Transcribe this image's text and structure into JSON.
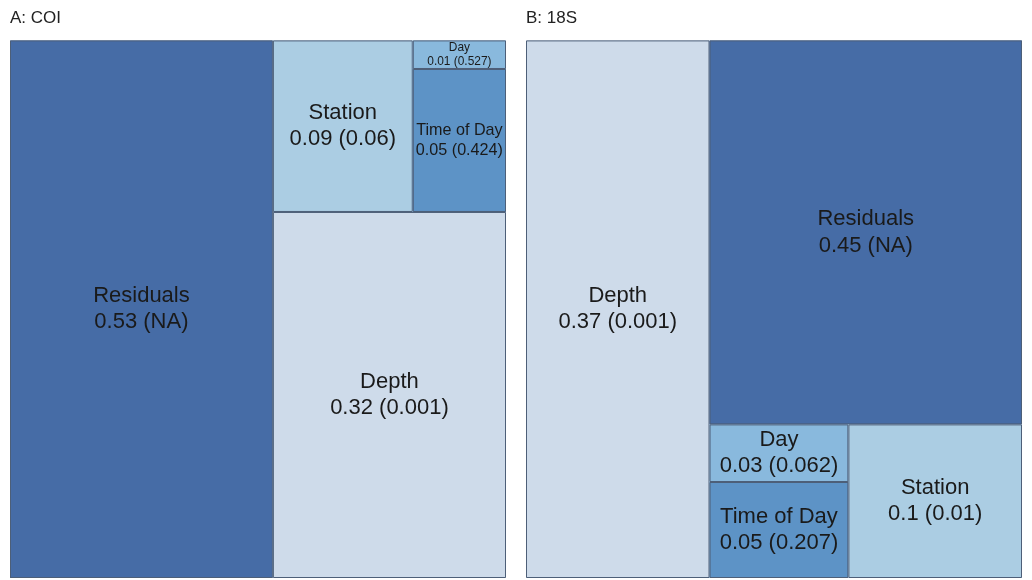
{
  "chart_data": [
    {
      "type": "other",
      "title": "A: COI",
      "categories": [
        "Residuals",
        "Station",
        "Day",
        "Time of Day",
        "Depth"
      ],
      "values": [
        0.53,
        0.09,
        0.01,
        0.05,
        0.32
      ],
      "value_labels": [
        "0.53 (NA)",
        "0.09 (0.06)",
        "0.01 (0.527)",
        "0.05 (0.424)",
        "0.32 (0.001)"
      ],
      "colors": [
        "#466ca6",
        "#abcde3",
        "#89b9dd",
        "#5d93c6",
        "#cedbea"
      ]
    },
    {
      "type": "other",
      "title": "B: 18S",
      "categories": [
        "Depth",
        "Residuals",
        "Day",
        "Time of Day",
        "Station"
      ],
      "values": [
        0.37,
        0.45,
        0.03,
        0.05,
        0.1
      ],
      "value_labels": [
        "0.37 (0.001)",
        "0.45 (NA)",
        "0.03 (0.062)",
        "0.05 (0.207)",
        "0.1 (0.01)"
      ],
      "colors": [
        "#cedbea",
        "#466ca6",
        "#89b9dd",
        "#5d93c6",
        "#abcde3"
      ]
    }
  ]
}
